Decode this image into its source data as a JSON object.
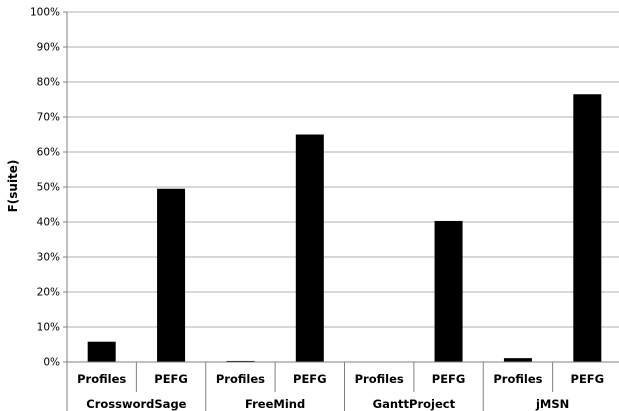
{
  "chart_data": {
    "type": "bar",
    "title": "",
    "xlabel": "",
    "ylabel": "F(suite)",
    "ylim": [
      0,
      100
    ],
    "y_ticks": [
      "0%",
      "10%",
      "20%",
      "30%",
      "40%",
      "50%",
      "60%",
      "70%",
      "80%",
      "90%",
      "100%"
    ],
    "grid": true,
    "groups": [
      "CrosswordSage",
      "FreeMind",
      "GanttProject",
      "jMSN"
    ],
    "categories": [
      "Profiles",
      "PEFG",
      "Profiles",
      "PEFG",
      "Profiles",
      "PEFG",
      "Profiles",
      "PEFG"
    ],
    "values": [
      5.8,
      49.5,
      0.3,
      65,
      0.1,
      40.3,
      1.1,
      76.5
    ],
    "bar_color": "#000000",
    "grid_color": "#b0b0b0"
  }
}
